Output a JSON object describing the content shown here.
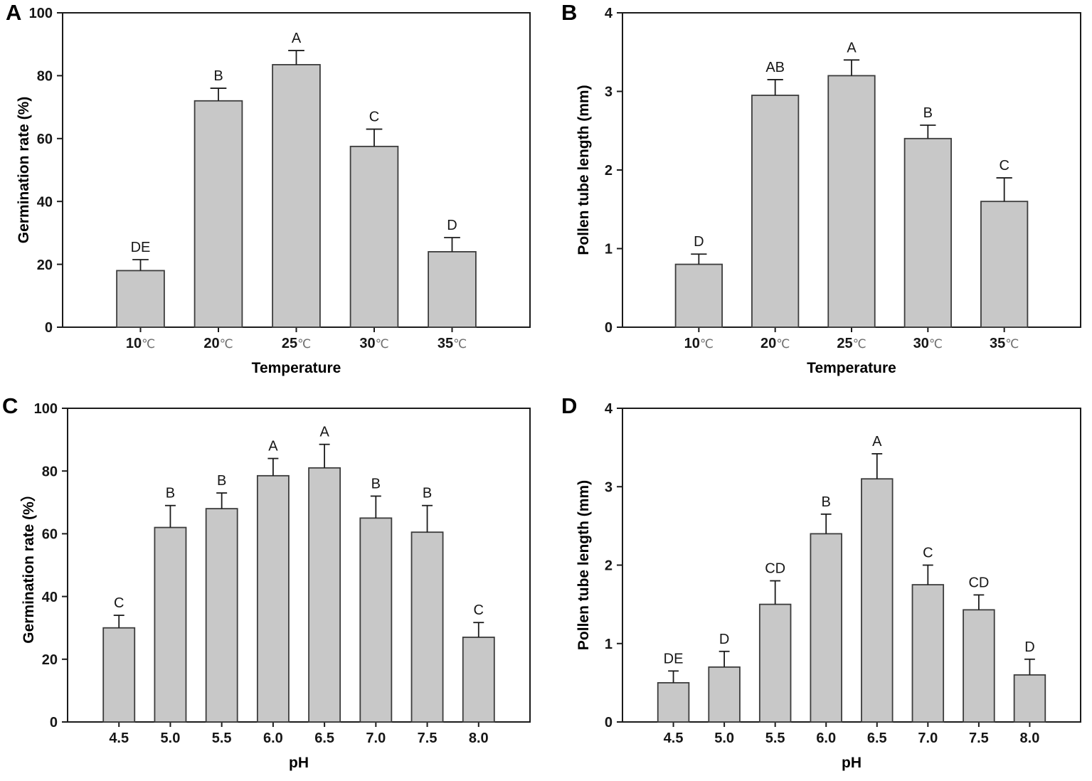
{
  "style": {
    "bar_fill": "#c8c8c8",
    "bar_stroke": "#3c3c3c",
    "axis_color": "#1b1b1b",
    "background": "#ffffff"
  },
  "chart_data": [
    {
      "panel_label": "A",
      "type": "bar",
      "xlabel": "Temperature",
      "ylabel": "Germination rate (%)",
      "ylim": [
        0,
        100
      ],
      "yticks": [
        0,
        20,
        40,
        60,
        80,
        100
      ],
      "grid": false,
      "legend": null,
      "categories": [
        "10℃",
        "20℃",
        "25℃",
        "30℃",
        "35℃"
      ],
      "values": [
        18,
        72,
        83.5,
        57.5,
        24
      ],
      "errors": [
        3.5,
        4,
        4.5,
        5.5,
        4.5
      ],
      "letters": [
        "DE",
        "B",
        "A",
        "C",
        "D"
      ]
    },
    {
      "panel_label": "B",
      "type": "bar",
      "xlabel": "Temperature",
      "ylabel": "Pollen tube length (mm)",
      "ylim": [
        0,
        4
      ],
      "yticks": [
        0,
        1,
        2,
        3,
        4
      ],
      "grid": false,
      "legend": null,
      "categories": [
        "10℃",
        "20℃",
        "25℃",
        "30℃",
        "35℃"
      ],
      "values": [
        0.8,
        2.95,
        3.2,
        2.4,
        1.6
      ],
      "errors": [
        0.13,
        0.2,
        0.2,
        0.17,
        0.3
      ],
      "letters": [
        "D",
        "AB",
        "A",
        "B",
        "C"
      ]
    },
    {
      "panel_label": "C",
      "type": "bar",
      "xlabel": "pH",
      "ylabel": "Germination rate (%）",
      "ylim": [
        0,
        100
      ],
      "yticks": [
        0,
        20,
        40,
        60,
        80,
        100
      ],
      "grid": false,
      "legend": null,
      "categories": [
        "4.5",
        "5.0",
        "5.5",
        "6.0",
        "6.5",
        "7.0",
        "7.5",
        "8.0"
      ],
      "values": [
        30,
        62,
        68,
        78.5,
        81,
        65,
        60.5,
        27
      ],
      "errors": [
        4,
        7,
        5,
        5.5,
        7.5,
        7,
        8.5,
        4.7
      ],
      "letters": [
        "C",
        "B",
        "B",
        "A",
        "A",
        "B",
        "B",
        "C"
      ]
    },
    {
      "panel_label": "D",
      "type": "bar",
      "xlabel": "pH",
      "ylabel": "Pollen tube length (mm)",
      "ylim": [
        0,
        4
      ],
      "yticks": [
        0,
        1,
        2,
        3,
        4
      ],
      "grid": false,
      "legend": null,
      "categories": [
        "4.5",
        "5.0",
        "5.5",
        "6.0",
        "6.5",
        "7.0",
        "7.5",
        "8.0"
      ],
      "values": [
        0.5,
        0.7,
        1.5,
        2.4,
        3.1,
        1.75,
        1.43,
        0.6
      ],
      "errors": [
        0.15,
        0.2,
        0.3,
        0.25,
        0.32,
        0.25,
        0.19,
        0.2
      ],
      "letters": [
        "DE",
        "D",
        "CD",
        "B",
        "A",
        "C",
        "CD",
        "D"
      ]
    }
  ]
}
